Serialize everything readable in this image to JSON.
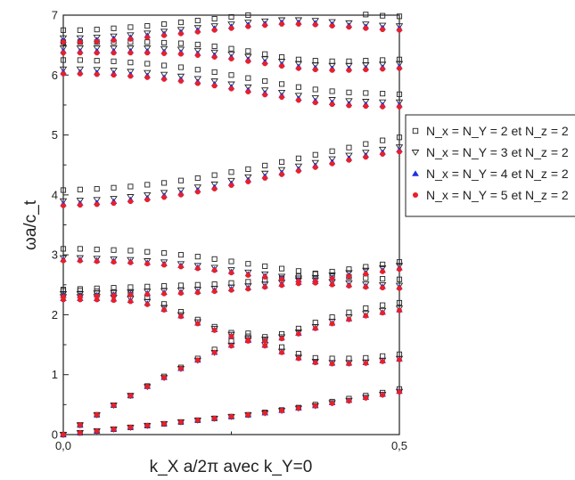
{
  "chart_data": {
    "type": "scatter",
    "xlabel": "k_X a/2π avec k_Y=0",
    "ylabel": "ωa/c_t",
    "xlim": [
      0,
      0.5
    ],
    "ylim": [
      0,
      7
    ],
    "x_ticks": [
      "0,0",
      "0,5"
    ],
    "y_ticks": [
      "0",
      "1",
      "2",
      "3",
      "4",
      "5",
      "6",
      "7"
    ],
    "grid": false,
    "legend_position": "right, outside plot",
    "x": [
      0.0,
      0.025,
      0.05,
      0.075,
      0.1,
      0.125,
      0.15,
      0.175,
      0.2,
      0.225,
      0.25,
      0.275,
      0.3,
      0.325,
      0.35,
      0.375,
      0.4,
      0.425,
      0.45,
      0.475,
      0.5
    ],
    "series": [
      {
        "name": "N_x = N_Y = 2 et N_z = 2",
        "marker": "open-square",
        "color": "#222222",
        "bands": [
          [
            0.0,
            0.03,
            0.06,
            0.09,
            0.12,
            0.15,
            0.18,
            0.21,
            0.24,
            0.27,
            0.3,
            0.33,
            0.37,
            0.41,
            0.45,
            0.5,
            0.55,
            0.6,
            0.65,
            0.7,
            0.76
          ],
          [
            0.0,
            0.16,
            0.33,
            0.49,
            0.65,
            0.81,
            0.97,
            1.12,
            1.27,
            1.42,
            1.56,
            1.69,
            1.58,
            1.46,
            1.35,
            1.28,
            1.27,
            1.27,
            1.28,
            1.31,
            1.34
          ],
          [
            2.4,
            2.4,
            2.39,
            2.38,
            2.36,
            2.29,
            2.18,
            2.05,
            1.92,
            1.8,
            1.7,
            1.64,
            1.63,
            1.68,
            1.77,
            1.87,
            1.96,
            2.04,
            2.11,
            2.16,
            2.2
          ],
          [
            2.42,
            2.43,
            2.44,
            2.45,
            2.46,
            2.47,
            2.48,
            2.49,
            2.5,
            2.51,
            2.53,
            2.55,
            2.58,
            2.61,
            2.64,
            2.68,
            2.72,
            2.76,
            2.8,
            2.84,
            2.88
          ],
          [
            3.1,
            3.1,
            3.09,
            3.08,
            3.07,
            3.05,
            3.03,
            3.0,
            2.97,
            2.93,
            2.89,
            2.85,
            2.81,
            2.77,
            2.73,
            2.69,
            2.66,
            2.63,
            2.61,
            2.6,
            2.59
          ],
          [
            4.08,
            4.09,
            4.1,
            4.12,
            4.14,
            4.17,
            4.2,
            4.24,
            4.28,
            4.33,
            4.38,
            4.43,
            4.49,
            4.55,
            4.61,
            4.67,
            4.73,
            4.79,
            4.85,
            4.91,
            4.96
          ],
          [
            6.25,
            6.25,
            6.24,
            6.23,
            6.21,
            6.19,
            6.16,
            6.13,
            6.09,
            6.05,
            6.0,
            5.95,
            5.9,
            5.85,
            5.8,
            5.76,
            5.73,
            5.71,
            5.7,
            5.69,
            5.68
          ],
          [
            6.55,
            6.55,
            6.55,
            6.55,
            6.55,
            6.55,
            6.54,
            6.53,
            6.51,
            6.48,
            6.44,
            6.4,
            6.35,
            6.3,
            6.26,
            6.24,
            6.23,
            6.23,
            6.24,
            6.25,
            6.26
          ],
          [
            6.75,
            6.75,
            6.76,
            6.78,
            6.8,
            6.82,
            6.85,
            6.88,
            6.91,
            6.94,
            6.97,
            7.0,
            7.03,
            7.05,
            7.06,
            7.06,
            7.05,
            7.03,
            7.01,
            6.99,
            6.98
          ]
        ]
      },
      {
        "name": "N_x = N_Y = 3 et N_z = 2",
        "marker": "open-triangle-down",
        "color": "#222222",
        "bands": [
          [
            0.0,
            0.03,
            0.06,
            0.09,
            0.12,
            0.15,
            0.18,
            0.21,
            0.24,
            0.27,
            0.3,
            0.33,
            0.36,
            0.4,
            0.44,
            0.48,
            0.53,
            0.57,
            0.62,
            0.67,
            0.72
          ],
          [
            0.0,
            0.16,
            0.33,
            0.49,
            0.65,
            0.8,
            0.95,
            1.1,
            1.24,
            1.37,
            1.49,
            1.58,
            1.5,
            1.39,
            1.29,
            1.22,
            1.2,
            1.2,
            1.21,
            1.24,
            1.27
          ],
          [
            2.3,
            2.3,
            2.3,
            2.29,
            2.27,
            2.22,
            2.12,
            2.0,
            1.88,
            1.77,
            1.67,
            1.61,
            1.59,
            1.63,
            1.71,
            1.8,
            1.89,
            1.96,
            2.02,
            2.07,
            2.11
          ],
          [
            2.35,
            2.35,
            2.36,
            2.37,
            2.38,
            2.39,
            2.4,
            2.41,
            2.42,
            2.44,
            2.46,
            2.48,
            2.51,
            2.54,
            2.58,
            2.62,
            2.66,
            2.7,
            2.74,
            2.78,
            2.82
          ],
          [
            2.95,
            2.95,
            2.94,
            2.93,
            2.92,
            2.9,
            2.88,
            2.85,
            2.82,
            2.79,
            2.75,
            2.71,
            2.68,
            2.64,
            2.61,
            2.58,
            2.55,
            2.53,
            2.51,
            2.5,
            2.49
          ],
          [
            3.9,
            3.91,
            3.92,
            3.94,
            3.97,
            4.0,
            4.04,
            4.08,
            4.13,
            4.18,
            4.24,
            4.3,
            4.36,
            4.42,
            4.48,
            4.54,
            4.6,
            4.66,
            4.71,
            4.76,
            4.8
          ],
          [
            6.1,
            6.1,
            6.09,
            6.08,
            6.06,
            6.04,
            6.01,
            5.98,
            5.94,
            5.9,
            5.85,
            5.8,
            5.75,
            5.71,
            5.66,
            5.62,
            5.59,
            5.57,
            5.56,
            5.55,
            5.55
          ],
          [
            6.45,
            6.45,
            6.45,
            6.45,
            6.45,
            6.45,
            6.44,
            6.43,
            6.41,
            6.38,
            6.35,
            6.31,
            6.27,
            6.23,
            6.19,
            6.17,
            6.16,
            6.16,
            6.17,
            6.18,
            6.19
          ],
          [
            6.62,
            6.62,
            6.63,
            6.65,
            6.67,
            6.7,
            6.73,
            6.76,
            6.79,
            6.82,
            6.85,
            6.88,
            6.9,
            6.92,
            6.92,
            6.91,
            6.89,
            6.87,
            6.85,
            6.83,
            6.82
          ]
        ]
      },
      {
        "name": "N_x = N_Y = 4 et N_z = 2",
        "marker": "filled-triangle-up",
        "color": "#1f2ee0",
        "bands": [
          [
            0.0,
            0.03,
            0.06,
            0.09,
            0.12,
            0.15,
            0.18,
            0.21,
            0.24,
            0.27,
            0.3,
            0.33,
            0.36,
            0.4,
            0.44,
            0.48,
            0.53,
            0.57,
            0.62,
            0.67,
            0.72
          ],
          [
            0.0,
            0.16,
            0.33,
            0.49,
            0.65,
            0.8,
            0.95,
            1.1,
            1.24,
            1.37,
            1.49,
            1.57,
            1.49,
            1.38,
            1.28,
            1.21,
            1.19,
            1.19,
            1.2,
            1.23,
            1.26
          ],
          [
            2.27,
            2.27,
            2.27,
            2.26,
            2.24,
            2.19,
            2.09,
            1.98,
            1.86,
            1.75,
            1.65,
            1.59,
            1.57,
            1.61,
            1.69,
            1.78,
            1.86,
            1.93,
            1.99,
            2.04,
            2.08
          ],
          [
            2.32,
            2.32,
            2.33,
            2.34,
            2.35,
            2.36,
            2.37,
            2.38,
            2.39,
            2.41,
            2.43,
            2.45,
            2.48,
            2.51,
            2.54,
            2.58,
            2.62,
            2.66,
            2.7,
            2.74,
            2.78
          ],
          [
            2.92,
            2.92,
            2.91,
            2.9,
            2.89,
            2.87,
            2.85,
            2.82,
            2.79,
            2.76,
            2.72,
            2.68,
            2.65,
            2.61,
            2.58,
            2.55,
            2.52,
            2.5,
            2.48,
            2.47,
            2.46
          ],
          [
            3.85,
            3.86,
            3.87,
            3.89,
            3.92,
            3.95,
            3.99,
            4.03,
            4.08,
            4.13,
            4.19,
            4.25,
            4.31,
            4.37,
            4.43,
            4.49,
            4.55,
            4.61,
            4.66,
            4.71,
            4.75
          ],
          [
            6.05,
            6.05,
            6.04,
            6.03,
            6.01,
            5.99,
            5.96,
            5.93,
            5.89,
            5.85,
            5.8,
            5.75,
            5.7,
            5.66,
            5.61,
            5.57,
            5.54,
            5.52,
            5.51,
            5.5,
            5.5
          ],
          [
            6.4,
            6.4,
            6.4,
            6.4,
            6.4,
            6.4,
            6.39,
            6.38,
            6.36,
            6.33,
            6.3,
            6.26,
            6.22,
            6.18,
            6.14,
            6.12,
            6.11,
            6.11,
            6.12,
            6.13,
            6.14
          ],
          [
            6.58,
            6.58,
            6.59,
            6.61,
            6.63,
            6.66,
            6.69,
            6.72,
            6.75,
            6.78,
            6.81,
            6.84,
            6.86,
            6.88,
            6.88,
            6.87,
            6.85,
            6.83,
            6.81,
            6.79,
            6.78
          ]
        ]
      },
      {
        "name": "N_x = N_Y = 5 et N_z = 2",
        "marker": "filled-circle",
        "color": "#e8202a",
        "bands": [
          [
            0.0,
            0.03,
            0.06,
            0.09,
            0.12,
            0.15,
            0.18,
            0.21,
            0.24,
            0.27,
            0.3,
            0.33,
            0.36,
            0.4,
            0.44,
            0.48,
            0.52,
            0.56,
            0.61,
            0.66,
            0.71
          ],
          [
            0.0,
            0.16,
            0.33,
            0.49,
            0.65,
            0.8,
            0.95,
            1.1,
            1.24,
            1.37,
            1.48,
            1.56,
            1.48,
            1.37,
            1.27,
            1.2,
            1.18,
            1.18,
            1.19,
            1.22,
            1.25
          ],
          [
            2.25,
            2.25,
            2.25,
            2.24,
            2.22,
            2.17,
            2.08,
            1.97,
            1.85,
            1.74,
            1.64,
            1.58,
            1.56,
            1.6,
            1.68,
            1.77,
            1.85,
            1.92,
            1.98,
            2.03,
            2.07
          ],
          [
            2.3,
            2.3,
            2.31,
            2.32,
            2.33,
            2.34,
            2.35,
            2.36,
            2.37,
            2.39,
            2.41,
            2.43,
            2.46,
            2.49,
            2.52,
            2.56,
            2.6,
            2.64,
            2.68,
            2.72,
            2.76
          ],
          [
            2.9,
            2.9,
            2.89,
            2.88,
            2.87,
            2.85,
            2.83,
            2.8,
            2.77,
            2.74,
            2.7,
            2.66,
            2.63,
            2.59,
            2.56,
            2.53,
            2.5,
            2.48,
            2.46,
            2.45,
            2.44
          ],
          [
            3.82,
            3.83,
            3.84,
            3.86,
            3.89,
            3.92,
            3.96,
            4.0,
            4.05,
            4.1,
            4.16,
            4.22,
            4.28,
            4.34,
            4.4,
            4.46,
            4.52,
            4.58,
            4.63,
            4.68,
            4.72
          ],
          [
            6.02,
            6.02,
            6.01,
            6.0,
            5.98,
            5.96,
            5.93,
            5.9,
            5.86,
            5.82,
            5.77,
            5.72,
            5.67,
            5.63,
            5.58,
            5.54,
            5.51,
            5.49,
            5.48,
            5.47,
            5.47
          ],
          [
            6.37,
            6.37,
            6.37,
            6.37,
            6.37,
            6.37,
            6.36,
            6.35,
            6.33,
            6.3,
            6.27,
            6.23,
            6.19,
            6.15,
            6.11,
            6.09,
            6.08,
            6.08,
            6.09,
            6.1,
            6.11
          ],
          [
            6.55,
            6.55,
            6.56,
            6.58,
            6.6,
            6.63,
            6.66,
            6.69,
            6.72,
            6.75,
            6.78,
            6.81,
            6.83,
            6.85,
            6.85,
            6.84,
            6.82,
            6.8,
            6.78,
            6.76,
            6.75
          ]
        ]
      }
    ]
  }
}
